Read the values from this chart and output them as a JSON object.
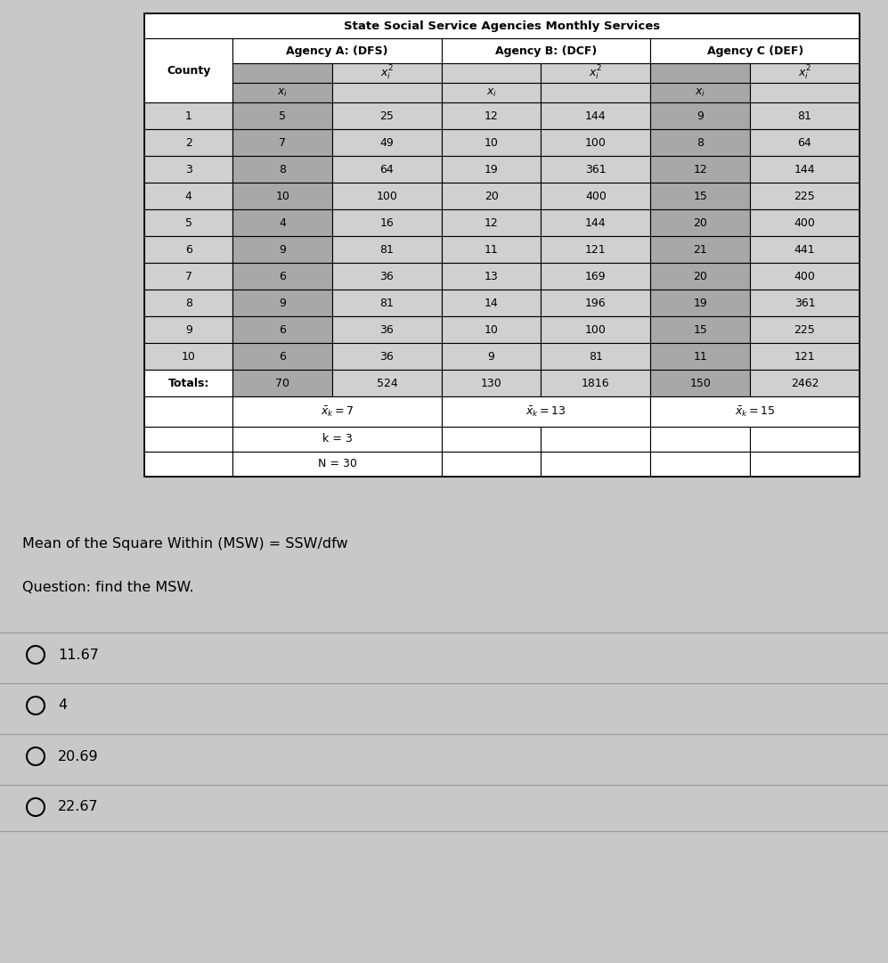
{
  "title": "State Social Service Agencies Monthly Services",
  "rows": [
    [
      "1",
      "5",
      "25",
      "12",
      "144",
      "9",
      "81"
    ],
    [
      "2",
      "7",
      "49",
      "10",
      "100",
      "8",
      "64"
    ],
    [
      "3",
      "8",
      "64",
      "19",
      "361",
      "12",
      "144"
    ],
    [
      "4",
      "10",
      "100",
      "20",
      "400",
      "15",
      "225"
    ],
    [
      "5",
      "4",
      "16",
      "12",
      "144",
      "20",
      "400"
    ],
    [
      "6",
      "9",
      "81",
      "11",
      "121",
      "21",
      "441"
    ],
    [
      "7",
      "6",
      "36",
      "13",
      "169",
      "20",
      "400"
    ],
    [
      "8",
      "9",
      "81",
      "14",
      "196",
      "19",
      "361"
    ],
    [
      "9",
      "6",
      "36",
      "10",
      "100",
      "15",
      "225"
    ],
    [
      "10",
      "6",
      "36",
      "9",
      "81",
      "11",
      "121"
    ]
  ],
  "totals_row": [
    "Totals:",
    "70",
    "524",
    "130",
    "1816",
    "150",
    "2462"
  ],
  "formula_text": "Mean of the Square Within (MSW) = SSW/dfw",
  "question_text": "Question: find the MSW.",
  "options": [
    "11.67",
    "4",
    "20.69",
    "22.67"
  ],
  "bg_color": "#c8c8c8",
  "white": "#ffffff",
  "dark_col": "#a8a8a8",
  "light_col": "#d0d0d0",
  "mid_col": "#c0c0c0"
}
